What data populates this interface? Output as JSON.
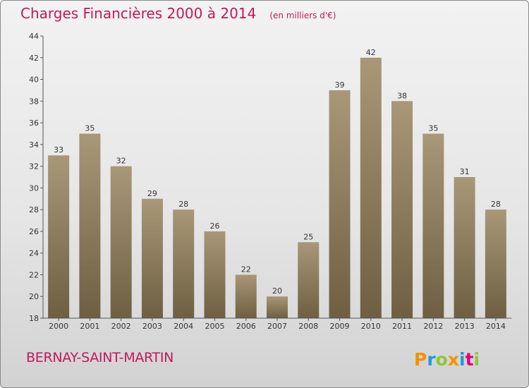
{
  "header": {
    "title": "Charges Financières 2000 à 2014",
    "unit": "(en milliers d'€)"
  },
  "footer": {
    "commune": "BERNAY-SAINT-MARTIN",
    "logo_text": "Proxiti"
  },
  "colors": {
    "accent": "#c2185b",
    "bar_top": "#a89878",
    "bar_bottom": "#6f5f42",
    "logo_p": "#f39200",
    "logo_r": "#1f9bd7",
    "logo_o": "#8dc63f",
    "logo_x": "#f39200",
    "logo_i1": "#1f9bd7",
    "logo_t": "#e2007a",
    "logo_i2": "#8dc63f"
  },
  "chart_data": {
    "type": "bar",
    "categories": [
      "2000",
      "2001",
      "2002",
      "2003",
      "2004",
      "2005",
      "2006",
      "2007",
      "2008",
      "2009",
      "2010",
      "2011",
      "2012",
      "2013",
      "2014"
    ],
    "values": [
      33,
      35,
      32,
      29,
      28,
      26,
      22,
      20,
      25,
      39,
      42,
      38,
      35,
      31,
      28
    ],
    "ylim": [
      18,
      44
    ],
    "yticks": [
      18,
      20,
      22,
      24,
      26,
      28,
      30,
      32,
      34,
      36,
      38,
      40,
      42,
      44
    ],
    "grid": false,
    "data_labels": true,
    "legend": "none"
  }
}
